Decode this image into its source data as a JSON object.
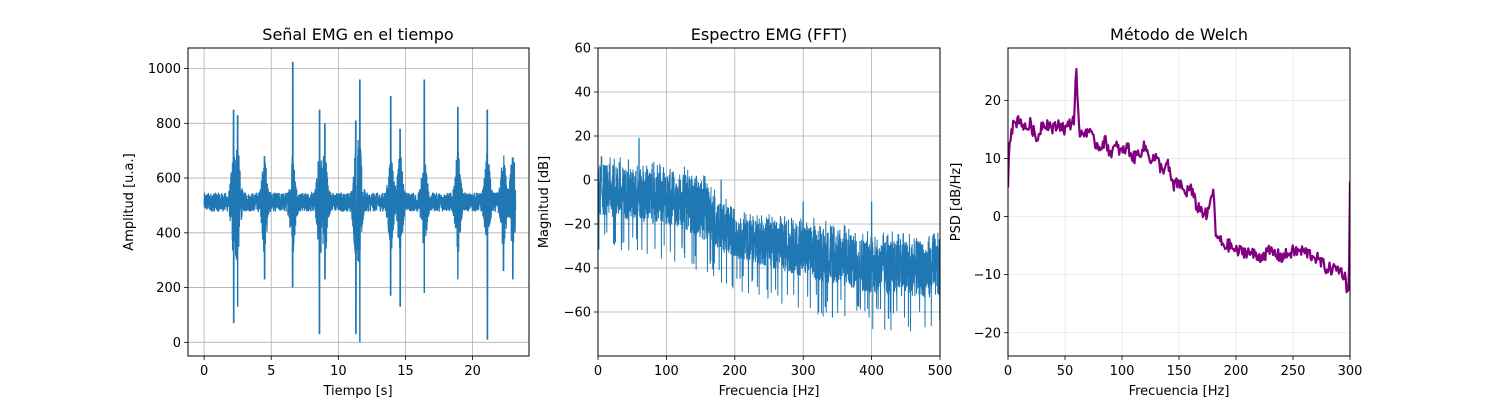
{
  "chart_data": [
    {
      "type": "line",
      "title": "Señal EMG en el tiempo",
      "xlabel": "Tiempo [s]",
      "ylabel": "Amplitud [u.a.]",
      "xlim": [
        -1.2,
        24.2
      ],
      "ylim": [
        -50,
        1075
      ],
      "xticks": [
        0,
        5,
        10,
        15,
        20
      ],
      "yticks": [
        0,
        200,
        400,
        600,
        800,
        1000
      ],
      "grid": true,
      "color": "#1f77b4",
      "series": [
        {
          "baseline": 512,
          "duration_s": 23.2,
          "bursts": [
            {
              "t": 2.2,
              "max": 850,
              "min": 70
            },
            {
              "t": 2.5,
              "max": 830,
              "min": 130
            },
            {
              "t": 4.5,
              "max": 680,
              "min": 230
            },
            {
              "t": 6.6,
              "max": 1025,
              "min": 200
            },
            {
              "t": 8.6,
              "max": 850,
              "min": 30
            },
            {
              "t": 9.0,
              "max": 800,
              "min": 230
            },
            {
              "t": 11.3,
              "max": 810,
              "min": 30
            },
            {
              "t": 11.6,
              "max": 960,
              "min": 0
            },
            {
              "t": 13.9,
              "max": 900,
              "min": 170
            },
            {
              "t": 14.6,
              "max": 780,
              "min": 130
            },
            {
              "t": 16.4,
              "max": 960,
              "min": 180
            },
            {
              "t": 18.9,
              "max": 860,
              "min": 230
            },
            {
              "t": 21.1,
              "max": 850,
              "min": 10
            },
            {
              "t": 22.3,
              "max": 640,
              "min": 260
            },
            {
              "t": 23.0,
              "max": 675,
              "min": 230
            }
          ]
        }
      ]
    },
    {
      "type": "line",
      "title": "Espectro EMG (FFT)",
      "xlabel": "Frecuencia [Hz]",
      "ylabel": "Magnitud [dB]",
      "xlim": [
        0,
        500
      ],
      "ylim": [
        -80,
        60
      ],
      "xticks": [
        0,
        100,
        200,
        300,
        400,
        500
      ],
      "yticks": [
        -60,
        -40,
        -20,
        0,
        20,
        40,
        60
      ],
      "grid": true,
      "color": "#1f77b4",
      "series": [
        {
          "envelope_top": [
            [
              0,
              8
            ],
            [
              60,
              5
            ],
            [
              120,
              3
            ],
            [
              150,
              0
            ],
            [
              180,
              -10
            ],
            [
              200,
              -17
            ],
            [
              300,
              -20
            ],
            [
              400,
              -27
            ],
            [
              500,
              -28
            ]
          ],
          "envelope_bottom": [
            [
              0,
              -22
            ],
            [
              60,
              -25
            ],
            [
              120,
              -28
            ],
            [
              180,
              -38
            ],
            [
              250,
              -45
            ],
            [
              300,
              -50
            ],
            [
              400,
              -58
            ],
            [
              500,
              -60
            ]
          ],
          "spikes": [
            {
              "x": 60,
              "y": 19
            },
            {
              "x": 180,
              "y": 0
            },
            {
              "x": 300,
              "y": -10
            },
            {
              "x": 400,
              "y": -10
            }
          ]
        }
      ]
    },
    {
      "type": "line",
      "title": "Método de Welch",
      "xlabel": "Frecuencia [Hz]",
      "ylabel": "PSD [dB/Hz]",
      "xlim": [
        0,
        300
      ],
      "ylim": [
        -24,
        29
      ],
      "xticks": [
        0,
        50,
        100,
        150,
        200,
        250,
        300
      ],
      "yticks": [
        -20,
        -10,
        0,
        10,
        20
      ],
      "grid": true,
      "color": "#800080",
      "series": [
        {
          "x": [
            0,
            1,
            3,
            6,
            10,
            15,
            20,
            25,
            30,
            35,
            40,
            45,
            50,
            55,
            58,
            60,
            62,
            65,
            70,
            75,
            80,
            85,
            90,
            95,
            100,
            105,
            110,
            115,
            120,
            125,
            130,
            135,
            140,
            145,
            150,
            155,
            160,
            165,
            170,
            175,
            178,
            180,
            182,
            185,
            190,
            195,
            200,
            210,
            220,
            230,
            240,
            250,
            260,
            270,
            280,
            290,
            295,
            297,
            299,
            300
          ],
          "y": [
            5,
            12,
            15,
            16,
            17,
            15,
            16,
            13,
            16,
            16,
            15,
            16,
            15,
            16,
            17,
            26,
            15,
            14,
            15,
            13,
            12,
            13,
            11,
            12,
            11,
            12,
            10,
            11,
            12,
            10,
            10,
            8,
            9,
            5,
            6,
            4,
            5,
            2,
            1,
            0,
            3,
            5,
            -3,
            -4,
            -5,
            -5,
            -6,
            -6,
            -7,
            -6,
            -7,
            -6,
            -6,
            -7,
            -9,
            -9,
            -10,
            -12,
            -13,
            6
          ]
        }
      ]
    }
  ]
}
